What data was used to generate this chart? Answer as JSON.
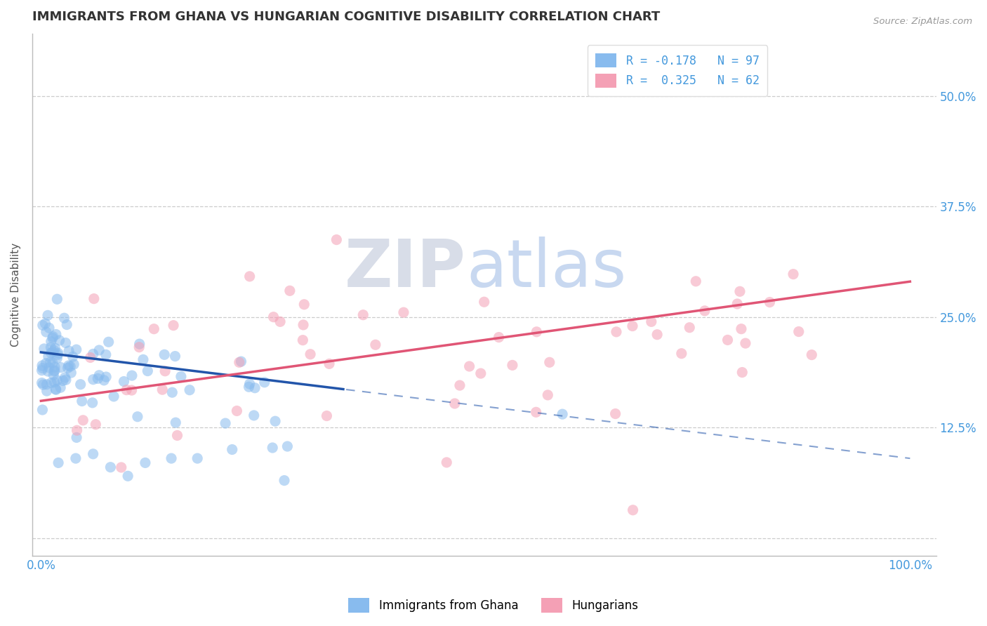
{
  "title": "IMMIGRANTS FROM GHANA VS HUNGARIAN COGNITIVE DISABILITY CORRELATION CHART",
  "source": "Source: ZipAtlas.com",
  "ylabel": "Cognitive Disability",
  "blue_color": "#88BBEE",
  "pink_color": "#F4A0B5",
  "blue_line_color": "#2255AA",
  "pink_line_color": "#E05575",
  "blue_R": -0.178,
  "blue_N": 97,
  "pink_R": 0.325,
  "pink_N": 62,
  "legend_label_blue": "Immigrants from Ghana",
  "legend_label_pink": "Hungarians",
  "background_color": "#FFFFFF",
  "grid_color": "#CCCCCC",
  "title_color": "#333333",
  "axis_label_color": "#555555",
  "tick_label_color": "#4499DD",
  "source_color": "#999999",
  "title_fontsize": 13,
  "label_fontsize": 11,
  "tick_fontsize": 12,
  "legend_fontsize": 12
}
